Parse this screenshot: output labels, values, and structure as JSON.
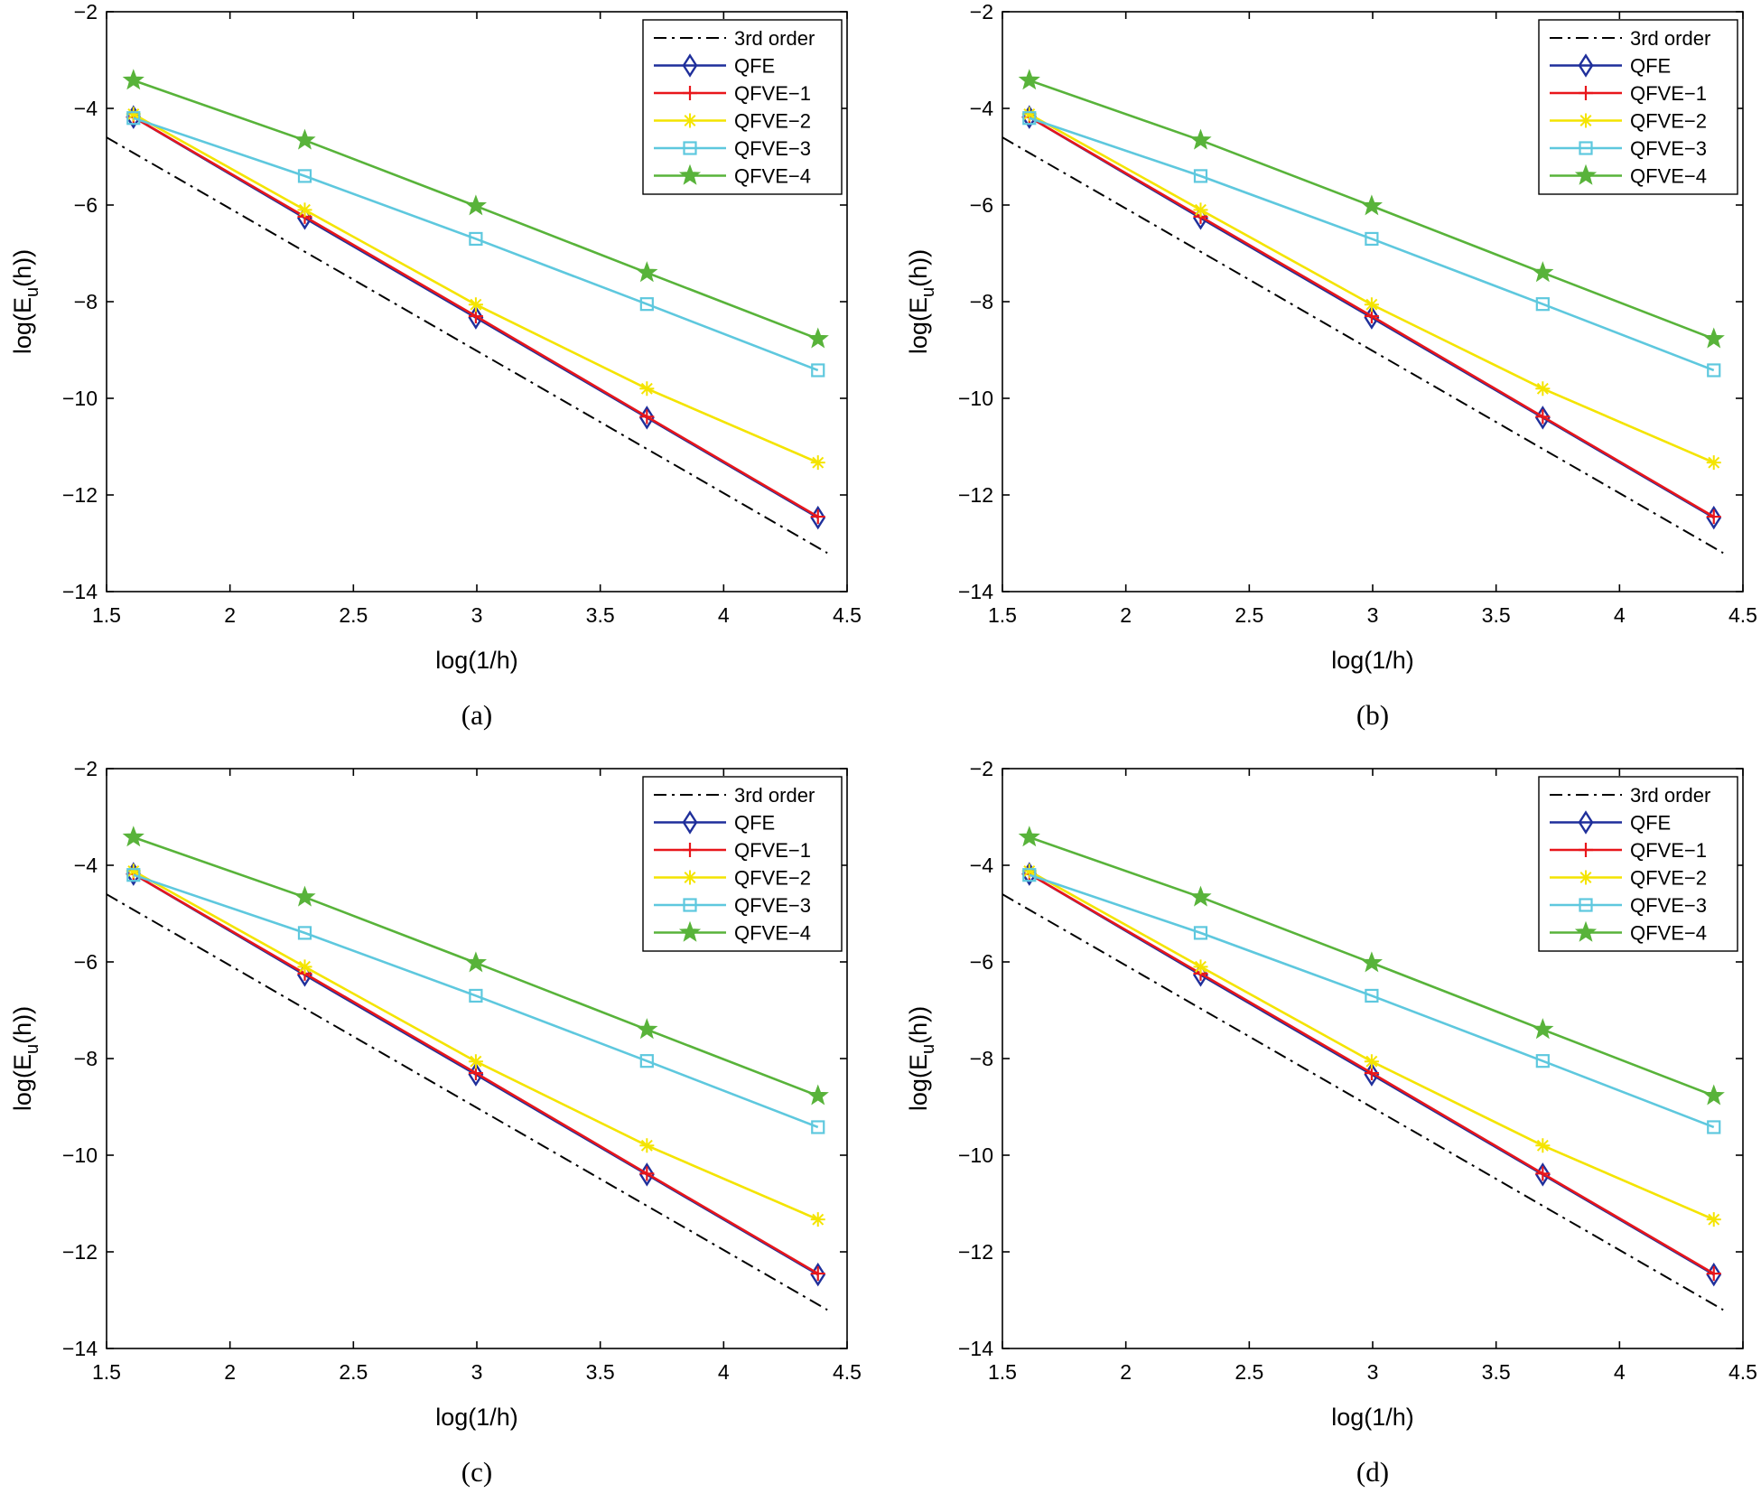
{
  "figure": {
    "subplots": [
      "a",
      "b",
      "c",
      "d"
    ]
  },
  "chart_data": [
    {
      "type": "line",
      "caption": "(a)",
      "xlabel": "log(1/h)",
      "ylabel": "log(E_u(h))",
      "ylabel_main": "log(E",
      "ylabel_sub": "u",
      "ylabel_tail": "(h))",
      "xlim": [
        1.5,
        4.5
      ],
      "ylim": [
        -14,
        -2
      ],
      "xticks": [
        1.5,
        2,
        2.5,
        3,
        3.5,
        4,
        4.5
      ],
      "xtick_labels": [
        "1.5",
        "2",
        "2.5",
        "3",
        "3.5",
        "4",
        "4.5"
      ],
      "yticks": [
        -2,
        -4,
        -6,
        -8,
        -10,
        -12,
        -14
      ],
      "ytick_labels": [
        "−2",
        "−4",
        "−6",
        "−8",
        "−10",
        "−12",
        "−14"
      ],
      "grid": false,
      "legend_position": "top-right",
      "series": [
        {
          "name": "3rd order",
          "color": "#000000",
          "style": "dashdot",
          "marker": "none",
          "x": [
            1.5,
            4.42
          ],
          "y": [
            -4.6,
            -13.2
          ]
        },
        {
          "name": "QFE",
          "color": "#1f2f9b",
          "style": "solid",
          "marker": "diamond",
          "x": [
            1.609,
            2.303,
            2.996,
            3.689,
            4.382
          ],
          "y": [
            -4.18,
            -6.27,
            -8.33,
            -10.4,
            -12.47
          ]
        },
        {
          "name": "QFVE−1",
          "color": "#e8161b",
          "style": "solid",
          "marker": "plus",
          "x": [
            1.609,
            2.303,
            2.996,
            3.689,
            4.382
          ],
          "y": [
            -4.18,
            -6.24,
            -8.3,
            -10.38,
            -12.45
          ]
        },
        {
          "name": "QFVE−2",
          "color": "#f4e400",
          "style": "solid",
          "marker": "asterisk",
          "x": [
            1.609,
            2.303,
            2.996,
            3.689,
            4.382
          ],
          "y": [
            -4.12,
            -6.1,
            -8.06,
            -9.8,
            -11.33
          ]
        },
        {
          "name": "QFVE−3",
          "color": "#5ec8de",
          "style": "solid",
          "marker": "square",
          "x": [
            1.609,
            2.303,
            2.996,
            3.689,
            4.382
          ],
          "y": [
            -4.2,
            -5.4,
            -6.7,
            -8.05,
            -9.42
          ]
        },
        {
          "name": "QFVE−4",
          "color": "#58b33a",
          "style": "solid",
          "marker": "star",
          "x": [
            1.609,
            2.303,
            2.996,
            3.689,
            4.382
          ],
          "y": [
            -3.42,
            -4.66,
            -6.02,
            -7.4,
            -8.77
          ]
        }
      ]
    },
    {
      "type": "line",
      "caption": "(b)",
      "xlabel": "log(1/h)",
      "ylabel": "log(E_u(h))",
      "ylabel_main": "log(E",
      "ylabel_sub": "u",
      "ylabel_tail": "(h))",
      "xlim": [
        1.5,
        4.5
      ],
      "ylim": [
        -14,
        -2
      ],
      "xticks": [
        1.5,
        2,
        2.5,
        3,
        3.5,
        4,
        4.5
      ],
      "xtick_labels": [
        "1.5",
        "2",
        "2.5",
        "3",
        "3.5",
        "4",
        "4.5"
      ],
      "yticks": [
        -2,
        -4,
        -6,
        -8,
        -10,
        -12,
        -14
      ],
      "ytick_labels": [
        "−2",
        "−4",
        "−6",
        "−8",
        "−10",
        "−12",
        "−14"
      ],
      "grid": false,
      "legend_position": "top-right",
      "series": [
        {
          "name": "3rd order",
          "color": "#000000",
          "style": "dashdot",
          "marker": "none",
          "x": [
            1.5,
            4.42
          ],
          "y": [
            -4.6,
            -13.2
          ]
        },
        {
          "name": "QFE",
          "color": "#1f2f9b",
          "style": "solid",
          "marker": "diamond",
          "x": [
            1.609,
            2.303,
            2.996,
            3.689,
            4.382
          ],
          "y": [
            -4.18,
            -6.27,
            -8.33,
            -10.4,
            -12.47
          ]
        },
        {
          "name": "QFVE−1",
          "color": "#e8161b",
          "style": "solid",
          "marker": "plus",
          "x": [
            1.609,
            2.303,
            2.996,
            3.689,
            4.382
          ],
          "y": [
            -4.18,
            -6.24,
            -8.3,
            -10.38,
            -12.45
          ]
        },
        {
          "name": "QFVE−2",
          "color": "#f4e400",
          "style": "solid",
          "marker": "asterisk",
          "x": [
            1.609,
            2.303,
            2.996,
            3.689,
            4.382
          ],
          "y": [
            -4.12,
            -6.1,
            -8.06,
            -9.8,
            -11.33
          ]
        },
        {
          "name": "QFVE−3",
          "color": "#5ec8de",
          "style": "solid",
          "marker": "square",
          "x": [
            1.609,
            2.303,
            2.996,
            3.689,
            4.382
          ],
          "y": [
            -4.2,
            -5.4,
            -6.7,
            -8.05,
            -9.42
          ]
        },
        {
          "name": "QFVE−4",
          "color": "#58b33a",
          "style": "solid",
          "marker": "star",
          "x": [
            1.609,
            2.303,
            2.996,
            3.689,
            4.382
          ],
          "y": [
            -3.42,
            -4.66,
            -6.02,
            -7.4,
            -8.77
          ]
        }
      ]
    },
    {
      "type": "line",
      "caption": "(c)",
      "xlabel": "log(1/h)",
      "ylabel": "log(E_u(h))",
      "ylabel_main": "log(E",
      "ylabel_sub": "u",
      "ylabel_tail": "(h))",
      "xlim": [
        1.5,
        4.5
      ],
      "ylim": [
        -14,
        -2
      ],
      "xticks": [
        1.5,
        2,
        2.5,
        3,
        3.5,
        4,
        4.5
      ],
      "xtick_labels": [
        "1.5",
        "2",
        "2.5",
        "3",
        "3.5",
        "4",
        "4.5"
      ],
      "yticks": [
        -2,
        -4,
        -6,
        -8,
        -10,
        -12,
        -14
      ],
      "ytick_labels": [
        "−2",
        "−4",
        "−6",
        "−8",
        "−10",
        "−12",
        "−14"
      ],
      "grid": false,
      "legend_position": "top-right",
      "series": [
        {
          "name": "3rd order",
          "color": "#000000",
          "style": "dashdot",
          "marker": "none",
          "x": [
            1.5,
            4.42
          ],
          "y": [
            -4.6,
            -13.2
          ]
        },
        {
          "name": "QFE",
          "color": "#1f2f9b",
          "style": "solid",
          "marker": "diamond",
          "x": [
            1.609,
            2.303,
            2.996,
            3.689,
            4.382
          ],
          "y": [
            -4.18,
            -6.27,
            -8.33,
            -10.4,
            -12.47
          ]
        },
        {
          "name": "QFVE−1",
          "color": "#e8161b",
          "style": "solid",
          "marker": "plus",
          "x": [
            1.609,
            2.303,
            2.996,
            3.689,
            4.382
          ],
          "y": [
            -4.18,
            -6.24,
            -8.3,
            -10.38,
            -12.45
          ]
        },
        {
          "name": "QFVE−2",
          "color": "#f4e400",
          "style": "solid",
          "marker": "asterisk",
          "x": [
            1.609,
            2.303,
            2.996,
            3.689,
            4.382
          ],
          "y": [
            -4.12,
            -6.1,
            -8.06,
            -9.8,
            -11.33
          ]
        },
        {
          "name": "QFVE−3",
          "color": "#5ec8de",
          "style": "solid",
          "marker": "square",
          "x": [
            1.609,
            2.303,
            2.996,
            3.689,
            4.382
          ],
          "y": [
            -4.2,
            -5.4,
            -6.7,
            -8.05,
            -9.42
          ]
        },
        {
          "name": "QFVE−4",
          "color": "#58b33a",
          "style": "solid",
          "marker": "star",
          "x": [
            1.609,
            2.303,
            2.996,
            3.689,
            4.382
          ],
          "y": [
            -3.42,
            -4.66,
            -6.02,
            -7.4,
            -8.77
          ]
        }
      ]
    },
    {
      "type": "line",
      "caption": "(d)",
      "xlabel": "log(1/h)",
      "ylabel": "log(E_u(h))",
      "ylabel_main": "log(E",
      "ylabel_sub": "u",
      "ylabel_tail": "(h))",
      "xlim": [
        1.5,
        4.5
      ],
      "ylim": [
        -14,
        -2
      ],
      "xticks": [
        1.5,
        2,
        2.5,
        3,
        3.5,
        4,
        4.5
      ],
      "xtick_labels": [
        "1.5",
        "2",
        "2.5",
        "3",
        "3.5",
        "4",
        "4.5"
      ],
      "yticks": [
        -2,
        -4,
        -6,
        -8,
        -10,
        -12,
        -14
      ],
      "ytick_labels": [
        "−2",
        "−4",
        "−6",
        "−8",
        "−10",
        "−12",
        "−14"
      ],
      "grid": false,
      "legend_position": "top-right",
      "series": [
        {
          "name": "3rd order",
          "color": "#000000",
          "style": "dashdot",
          "marker": "none",
          "x": [
            1.5,
            4.42
          ],
          "y": [
            -4.6,
            -13.2
          ]
        },
        {
          "name": "QFE",
          "color": "#1f2f9b",
          "style": "solid",
          "marker": "diamond",
          "x": [
            1.609,
            2.303,
            2.996,
            3.689,
            4.382
          ],
          "y": [
            -4.18,
            -6.27,
            -8.33,
            -10.4,
            -12.47
          ]
        },
        {
          "name": "QFVE−1",
          "color": "#e8161b",
          "style": "solid",
          "marker": "plus",
          "x": [
            1.609,
            2.303,
            2.996,
            3.689,
            4.382
          ],
          "y": [
            -4.18,
            -6.24,
            -8.3,
            -10.38,
            -12.45
          ]
        },
        {
          "name": "QFVE−2",
          "color": "#f4e400",
          "style": "solid",
          "marker": "asterisk",
          "x": [
            1.609,
            2.303,
            2.996,
            3.689,
            4.382
          ],
          "y": [
            -4.12,
            -6.1,
            -8.06,
            -9.8,
            -11.33
          ]
        },
        {
          "name": "QFVE−3",
          "color": "#5ec8de",
          "style": "solid",
          "marker": "square",
          "x": [
            1.609,
            2.303,
            2.996,
            3.689,
            4.382
          ],
          "y": [
            -4.2,
            -5.4,
            -6.7,
            -8.05,
            -9.42
          ]
        },
        {
          "name": "QFVE−4",
          "color": "#58b33a",
          "style": "solid",
          "marker": "star",
          "x": [
            1.609,
            2.303,
            2.996,
            3.689,
            4.382
          ],
          "y": [
            -3.42,
            -4.66,
            -6.02,
            -7.4,
            -8.77
          ]
        }
      ]
    }
  ]
}
